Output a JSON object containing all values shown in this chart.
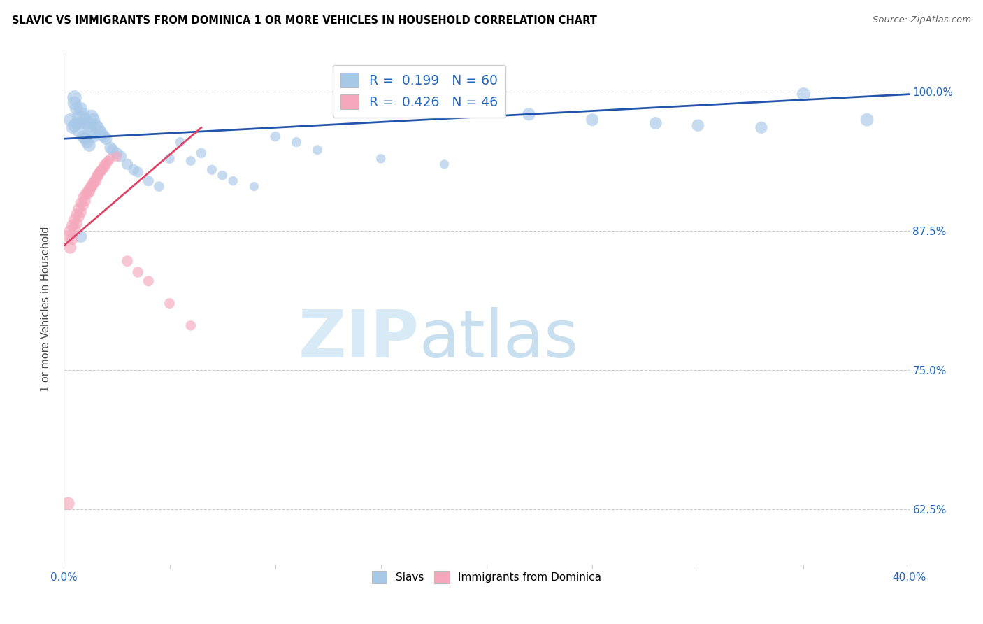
{
  "title": "SLAVIC VS IMMIGRANTS FROM DOMINICA 1 OR MORE VEHICLES IN HOUSEHOLD CORRELATION CHART",
  "source": "Source: ZipAtlas.com",
  "ylabel": "1 or more Vehicles in Household",
  "ytick_labels": [
    "100.0%",
    "87.5%",
    "75.0%",
    "62.5%"
  ],
  "ytick_values": [
    1.0,
    0.875,
    0.75,
    0.625
  ],
  "xlim": [
    0.0,
    0.4
  ],
  "ylim": [
    0.575,
    1.035
  ],
  "legend_slavs_R": "R =  0.199",
  "legend_slavs_N": "N = 60",
  "legend_dom_R": "R =  0.426",
  "legend_dom_N": "N = 46",
  "slavs_color": "#a8c8e8",
  "dom_color": "#f5a8bc",
  "trendline_slavs_color": "#2255aa",
  "trendline_dom_color": "#dd4466",
  "watermark_zip": "ZIP",
  "watermark_atlas": "atlas",
  "watermark_color": "#d8eaf5",
  "blue_trend_x": [
    0.0,
    0.4
  ],
  "blue_trend_y": [
    0.958,
    0.998
  ],
  "pink_trend_x": [
    0.0,
    0.065
  ],
  "pink_trend_y": [
    0.862,
    0.968
  ],
  "slavs_x": [
    0.003,
    0.004,
    0.005,
    0.005,
    0.006,
    0.006,
    0.007,
    0.007,
    0.008,
    0.008,
    0.009,
    0.009,
    0.01,
    0.01,
    0.011,
    0.011,
    0.012,
    0.012,
    0.013,
    0.013,
    0.014,
    0.014,
    0.015,
    0.016,
    0.017,
    0.018,
    0.019,
    0.02,
    0.022,
    0.023,
    0.025,
    0.027,
    0.03,
    0.033,
    0.035,
    0.04,
    0.045,
    0.05,
    0.055,
    0.06,
    0.065,
    0.07,
    0.075,
    0.08,
    0.09,
    0.1,
    0.11,
    0.12,
    0.15,
    0.18,
    0.2,
    0.22,
    0.25,
    0.28,
    0.3,
    0.33,
    0.35,
    0.38,
    0.005,
    0.008
  ],
  "slavs_y": [
    0.975,
    0.968,
    0.99,
    0.97,
    0.985,
    0.972,
    0.978,
    0.965,
    0.985,
    0.972,
    0.98,
    0.96,
    0.975,
    0.958,
    0.972,
    0.955,
    0.97,
    0.952,
    0.978,
    0.965,
    0.975,
    0.96,
    0.97,
    0.968,
    0.965,
    0.962,
    0.96,
    0.958,
    0.95,
    0.948,
    0.945,
    0.942,
    0.935,
    0.93,
    0.928,
    0.92,
    0.915,
    0.94,
    0.955,
    0.938,
    0.945,
    0.93,
    0.925,
    0.92,
    0.915,
    0.96,
    0.955,
    0.948,
    0.94,
    0.935,
    0.985,
    0.98,
    0.975,
    0.972,
    0.97,
    0.968,
    0.998,
    0.975,
    0.995,
    0.87
  ],
  "slavs_sizes": [
    180,
    160,
    200,
    180,
    190,
    170,
    200,
    180,
    190,
    170,
    185,
    165,
    195,
    175,
    185,
    165,
    195,
    175,
    200,
    180,
    190,
    170,
    185,
    180,
    175,
    170,
    165,
    160,
    155,
    150,
    145,
    140,
    135,
    130,
    125,
    120,
    115,
    110,
    105,
    100,
    110,
    105,
    100,
    95,
    90,
    110,
    105,
    100,
    95,
    90,
    180,
    175,
    170,
    165,
    160,
    155,
    195,
    185,
    220,
    160
  ],
  "dom_x": [
    0.002,
    0.003,
    0.004,
    0.005,
    0.006,
    0.007,
    0.008,
    0.009,
    0.01,
    0.011,
    0.012,
    0.013,
    0.014,
    0.015,
    0.016,
    0.017,
    0.018,
    0.019,
    0.02,
    0.021,
    0.003,
    0.005,
    0.007,
    0.009,
    0.011,
    0.013,
    0.015,
    0.017,
    0.019,
    0.022,
    0.004,
    0.006,
    0.008,
    0.01,
    0.012,
    0.014,
    0.016,
    0.018,
    0.02,
    0.025,
    0.03,
    0.035,
    0.04,
    0.05,
    0.06,
    0.002
  ],
  "dom_y": [
    0.87,
    0.875,
    0.88,
    0.885,
    0.89,
    0.895,
    0.9,
    0.905,
    0.908,
    0.91,
    0.912,
    0.915,
    0.918,
    0.92,
    0.925,
    0.928,
    0.93,
    0.932,
    0.935,
    0.938,
    0.86,
    0.878,
    0.888,
    0.898,
    0.908,
    0.915,
    0.922,
    0.928,
    0.934,
    0.94,
    0.868,
    0.882,
    0.892,
    0.902,
    0.91,
    0.918,
    0.924,
    0.93,
    0.936,
    0.942,
    0.848,
    0.838,
    0.83,
    0.81,
    0.79,
    0.63
  ],
  "dom_sizes": [
    160,
    155,
    150,
    145,
    140,
    135,
    130,
    125,
    120,
    115,
    160,
    155,
    150,
    145,
    140,
    135,
    130,
    125,
    120,
    115,
    155,
    150,
    145,
    140,
    135,
    130,
    125,
    120,
    115,
    110,
    155,
    150,
    145,
    140,
    135,
    130,
    125,
    120,
    115,
    110,
    130,
    125,
    120,
    115,
    110,
    180
  ]
}
